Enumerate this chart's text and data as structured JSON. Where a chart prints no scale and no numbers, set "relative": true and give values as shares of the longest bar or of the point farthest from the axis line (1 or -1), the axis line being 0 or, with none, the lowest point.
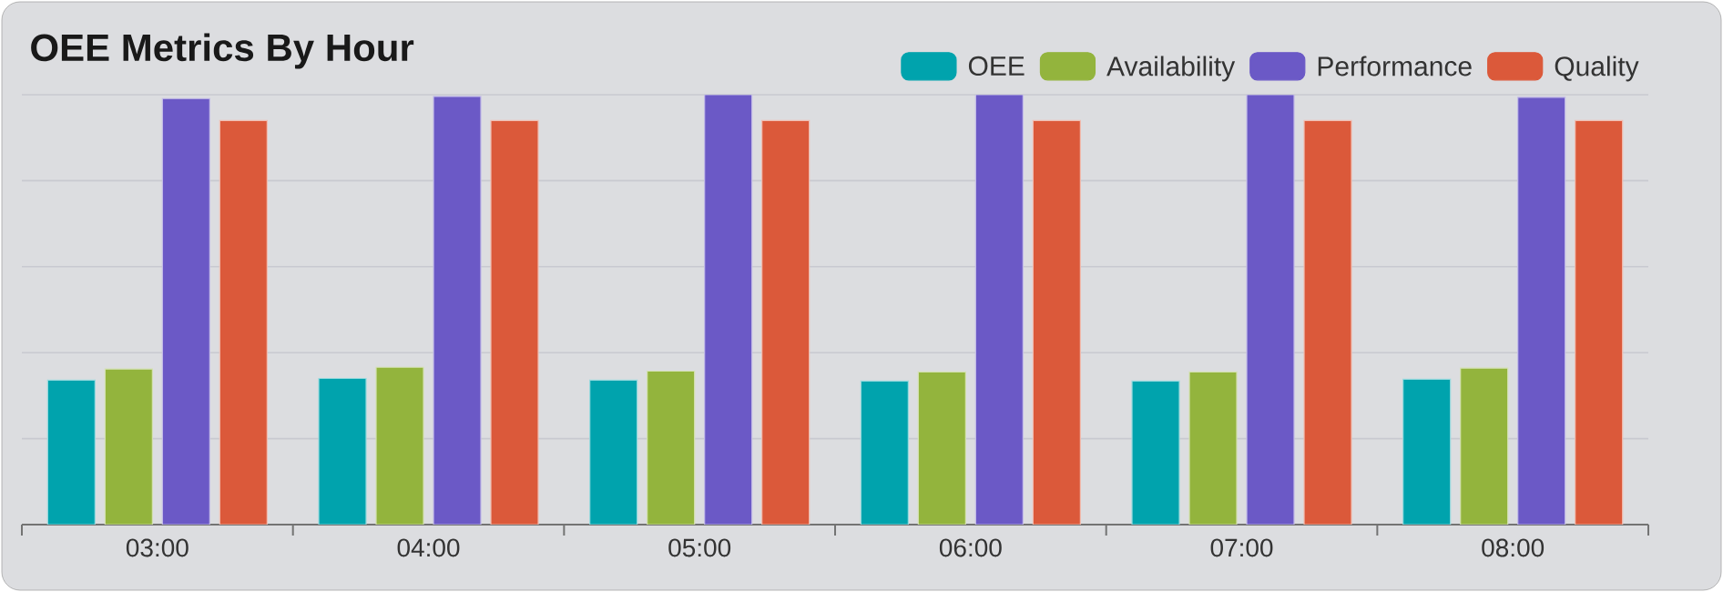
{
  "chart_data": {
    "type": "bar",
    "title": "OEE Metrics By Hour",
    "relative": true,
    "grid": "y",
    "legend": "top right",
    "categories": [
      "03:00",
      "04:00",
      "05:00",
      "06:00",
      "07:00",
      "08:00"
    ],
    "series": [
      {
        "name": "OEE",
        "color": "#00a3ad",
        "values": [
          0.336,
          0.34,
          0.336,
          0.334,
          0.334,
          0.338
        ]
      },
      {
        "name": "Availability",
        "color": "#93b43d",
        "values": [
          0.362,
          0.366,
          0.357,
          0.355,
          0.355,
          0.364
        ]
      },
      {
        "name": "Performance",
        "color": "#6b59c6",
        "values": [
          0.991,
          0.996,
          1.0,
          1.0,
          1.0,
          0.994
        ]
      },
      {
        "name": "Quality",
        "color": "#db593a",
        "values": [
          0.94,
          0.94,
          0.94,
          0.94,
          0.94,
          0.94
        ]
      }
    ]
  }
}
